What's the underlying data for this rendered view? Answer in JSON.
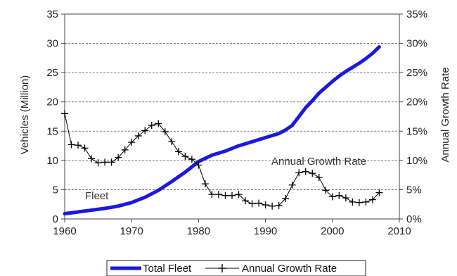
{
  "chart_data": {
    "type": "line",
    "title": "",
    "xlabel": "",
    "ylabel": "Vehicles (Million)",
    "y2label": "Annual Growth Rate",
    "xlim": [
      1960,
      2010
    ],
    "ylim": [
      0,
      35
    ],
    "y2lim": [
      0,
      35
    ],
    "x_ticks": [
      "1960",
      "1970",
      "1980",
      "1990",
      "2000",
      "2010"
    ],
    "y_ticks": [
      "0",
      "5",
      "10",
      "15",
      "20",
      "25",
      "30",
      "35"
    ],
    "y2_ticks": [
      "0%",
      "5%",
      "10%",
      "15%",
      "20%",
      "25%",
      "30%",
      "35%"
    ],
    "grid": "horizontal dashed",
    "legend_position": "bottom",
    "colors": {
      "fleet": "#1a1adb",
      "growth": "#000000"
    },
    "annotations": {
      "fleet": "Fleet",
      "growth": "Annual Growth Rate"
    },
    "series": [
      {
        "name": "Total Fleet",
        "axis": "left",
        "x": [
          1960,
          1962,
          1964,
          1966,
          1968,
          1970,
          1972,
          1974,
          1976,
          1978,
          1980,
          1982,
          1984,
          1986,
          1988,
          1990,
          1992,
          1993,
          1994,
          1995,
          1996,
          1997,
          1998,
          1999,
          2000,
          2001,
          2002,
          2003,
          2004,
          2005,
          2006,
          2007
        ],
        "values": [
          0.9,
          1.2,
          1.5,
          1.8,
          2.2,
          2.8,
          3.7,
          4.9,
          6.4,
          8.0,
          9.8,
          10.9,
          11.6,
          12.5,
          13.2,
          13.9,
          14.6,
          15.2,
          16.0,
          17.5,
          19.0,
          20.2,
          21.5,
          22.5,
          23.5,
          24.4,
          25.2,
          25.9,
          26.6,
          27.4,
          28.3,
          29.4
        ]
      },
      {
        "name": "Annual Growth Rate",
        "axis": "right",
        "x": [
          1960,
          1961,
          1962,
          1963,
          1964,
          1965,
          1966,
          1967,
          1968,
          1969,
          1970,
          1971,
          1972,
          1973,
          1974,
          1975,
          1976,
          1977,
          1978,
          1979,
          1980,
          1981,
          1982,
          1983,
          1984,
          1985,
          1986,
          1987,
          1988,
          1989,
          1990,
          1991,
          1992,
          1993,
          1994,
          1995,
          1996,
          1997,
          1998,
          1999,
          2000,
          2001,
          2002,
          2003,
          2004,
          2005,
          2006,
          2007
        ],
        "values": [
          18.0,
          12.7,
          12.6,
          12.1,
          10.3,
          9.6,
          9.7,
          9.7,
          10.5,
          11.8,
          13.1,
          14.2,
          15.1,
          16.0,
          16.3,
          14.9,
          13.2,
          11.5,
          10.7,
          10.2,
          9.2,
          6.0,
          4.2,
          4.2,
          4.0,
          4.0,
          4.2,
          3.1,
          2.6,
          2.7,
          2.4,
          2.2,
          2.3,
          3.5,
          5.8,
          7.9,
          8.1,
          7.8,
          7.1,
          4.9,
          3.8,
          4.0,
          3.6,
          2.9,
          2.8,
          2.9,
          3.3,
          4.5
        ]
      }
    ]
  }
}
